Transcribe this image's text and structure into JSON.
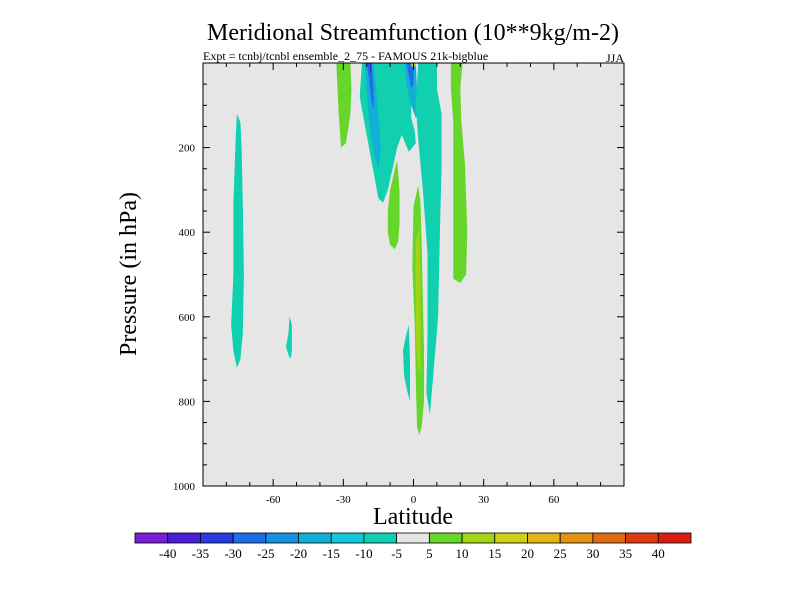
{
  "chart_data": {
    "type": "heatmap",
    "title": "Meridional Streamfunction (10**9kg/m-2)",
    "subtitle": "Expt = tcnbj/tcnbl ensemble_2_75 - FAMOUS 21k-bigblue",
    "season": "JJA",
    "xlabel": "Latitude",
    "ylabel": "Pressure (in hPa)",
    "xlim": [
      -90,
      90
    ],
    "ylim": [
      1000,
      0
    ],
    "x_ticks": [
      -60,
      -30,
      0,
      30,
      60
    ],
    "y_ticks": [
      200,
      400,
      600,
      800,
      1000
    ],
    "colorbar": {
      "levels": [
        -40,
        -35,
        -30,
        -25,
        -20,
        -15,
        -10,
        -5,
        5,
        10,
        15,
        20,
        25,
        30,
        35,
        40
      ],
      "colors": [
        "#7a1fd8",
        "#4a1ed6",
        "#2a3ae0",
        "#1f6ee8",
        "#1690e0",
        "#12b0d6",
        "#10c8d8",
        "#10d0b0",
        "#e6e6e6",
        "#66d62a",
        "#a4d416",
        "#cfd116",
        "#e2b414",
        "#e29210",
        "#e06a10",
        "#de3a10",
        "#d81e10"
      ]
    },
    "regions": [
      {
        "name": "nh-high-lat-negative",
        "level": "-10 to -5",
        "color": "#10d0b0",
        "points": [
          [
            -75.5,
            120
          ],
          [
            -74,
            140
          ],
          [
            -73.5,
            200
          ],
          [
            -73,
            330
          ],
          [
            -72.5,
            500
          ],
          [
            -73,
            640
          ],
          [
            -74,
            700
          ],
          [
            -75.5,
            720
          ],
          [
            -77,
            680
          ],
          [
            -78,
            620
          ],
          [
            -77,
            500
          ],
          [
            -77,
            330
          ],
          [
            -76,
            180
          ]
        ]
      },
      {
        "name": "nh-mid-lat-negative",
        "level": "-10 to -5",
        "color": "#10d0b0",
        "points": [
          [
            -53,
            600
          ],
          [
            -52,
            620
          ],
          [
            -52,
            680
          ],
          [
            -52.5,
            700
          ],
          [
            -53.5,
            690
          ],
          [
            -54.5,
            670
          ],
          [
            -53.5,
            640
          ]
        ]
      },
      {
        "name": "polar-cell-positive",
        "level": "5 to 10",
        "color": "#66d62a",
        "points": [
          [
            -33,
            0
          ],
          [
            -27,
            0
          ],
          [
            -26.5,
            60
          ],
          [
            -27,
            120
          ],
          [
            -28,
            160
          ],
          [
            -29,
            190
          ],
          [
            -31,
            200
          ],
          [
            -32,
            120
          ]
        ]
      },
      {
        "name": "hadley-cell-negative",
        "level": "-10 to -5",
        "color": "#10d0b0",
        "points": [
          [
            -22,
            0
          ],
          [
            -1,
            0
          ],
          [
            -1,
            130
          ],
          [
            0.5,
            160
          ],
          [
            1,
            190
          ],
          [
            -2,
            210
          ],
          [
            -5,
            170
          ],
          [
            -7,
            200
          ],
          [
            -9,
            250
          ],
          [
            -11,
            300
          ],
          [
            -13,
            330
          ],
          [
            -15,
            320
          ],
          [
            -17,
            260
          ],
          [
            -20,
            170
          ],
          [
            -23,
            80
          ]
        ]
      },
      {
        "name": "hadley-cell-core-1",
        "level": "-20 to -15",
        "color": "#12b0d6",
        "points": [
          [
            -21,
            0
          ],
          [
            -17,
            0
          ],
          [
            -15,
            120
          ],
          [
            -14,
            200
          ],
          [
            -15,
            250
          ],
          [
            -17,
            210
          ],
          [
            -19,
            140
          ],
          [
            -20,
            60
          ]
        ]
      },
      {
        "name": "hadley-cell-core-2",
        "level": "-30 to -25",
        "color": "#1f6ee8",
        "points": [
          [
            -20,
            0
          ],
          [
            -18,
            0
          ],
          [
            -17,
            60
          ],
          [
            -17,
            110
          ],
          [
            -18,
            90
          ],
          [
            -19,
            40
          ]
        ]
      },
      {
        "name": "hadley-cell-core-3",
        "level": "-40 to -35",
        "color": "#4a1ed6",
        "points": [
          [
            -19,
            0
          ],
          [
            -18,
            0
          ],
          [
            -18,
            30
          ],
          [
            -18.5,
            20
          ]
        ]
      },
      {
        "name": "hadley-cell-core-4",
        "level": "-20 to -15",
        "color": "#12b0d6",
        "points": [
          [
            -4,
            0
          ],
          [
            1,
            0
          ],
          [
            2,
            120
          ],
          [
            1,
            130
          ],
          [
            -1,
            100
          ],
          [
            -3,
            50
          ]
        ]
      },
      {
        "name": "hadley-cell-core-5",
        "level": "-30 to -25",
        "color": "#1f6ee8",
        "points": [
          [
            -3,
            0
          ],
          [
            0,
            0
          ],
          [
            0,
            50
          ],
          [
            -1,
            60
          ],
          [
            -2,
            30
          ]
        ]
      },
      {
        "name": "tropical-positive-1",
        "level": "5 to 10",
        "color": "#66d62a",
        "points": [
          [
            -10,
            300
          ],
          [
            -7,
            230
          ],
          [
            -6,
            300
          ],
          [
            -6,
            380
          ],
          [
            -6.5,
            420
          ],
          [
            -8,
            440
          ],
          [
            -10,
            430
          ],
          [
            -11,
            400
          ],
          [
            -11,
            350
          ]
        ]
      },
      {
        "name": "tropical-positive-2",
        "level": "5 to 10",
        "color": "#66d62a",
        "points": [
          [
            0,
            340
          ],
          [
            2,
            290
          ],
          [
            3,
            330
          ],
          [
            3.5,
            430
          ],
          [
            4,
            560
          ],
          [
            4.5,
            680
          ],
          [
            4.5,
            800
          ],
          [
            3.5,
            860
          ],
          [
            2.5,
            880
          ],
          [
            1.5,
            860
          ],
          [
            1,
            750
          ],
          [
            0.5,
            620
          ],
          [
            -0.5,
            480
          ]
        ]
      },
      {
        "name": "tropical-positive-core",
        "level": "10 to 15",
        "color": "#a4d416",
        "points": [
          [
            1,
            420
          ],
          [
            2.5,
            390
          ],
          [
            3,
            500
          ],
          [
            3,
            640
          ],
          [
            3,
            720
          ],
          [
            2,
            730
          ],
          [
            1,
            650
          ],
          [
            1,
            520
          ]
        ]
      },
      {
        "name": "tropical-negative-low",
        "level": "-10 to -5",
        "color": "#10d0b0",
        "points": [
          [
            -3,
            640
          ],
          [
            -2,
            620
          ],
          [
            -1.5,
            700
          ],
          [
            -1.5,
            800
          ],
          [
            -2.5,
            780
          ],
          [
            -4,
            740
          ],
          [
            -4.5,
            680
          ]
        ]
      },
      {
        "name": "sh-negative-1",
        "level": "-10 to -5",
        "color": "#10d0b0",
        "points": [
          [
            2,
            0
          ],
          [
            10,
            0
          ],
          [
            10,
            60
          ],
          [
            12,
            120
          ],
          [
            12,
            250
          ],
          [
            11.5,
            350
          ],
          [
            11,
            480
          ],
          [
            10.5,
            600
          ],
          [
            9,
            700
          ],
          [
            7.5,
            800
          ],
          [
            7,
            830
          ],
          [
            5.5,
            780
          ],
          [
            6,
            650
          ],
          [
            6,
            450
          ],
          [
            4,
            300
          ],
          [
            2,
            180
          ],
          [
            1,
            100
          ]
        ]
      },
      {
        "name": "sh-positive-high",
        "level": "5 to 10",
        "color": "#66d62a",
        "points": [
          [
            16,
            0
          ],
          [
            21,
            0
          ],
          [
            20,
            60
          ],
          [
            20.5,
            140
          ],
          [
            22,
            240
          ],
          [
            23,
            400
          ],
          [
            22.5,
            500
          ],
          [
            20,
            520
          ],
          [
            17,
            510
          ],
          [
            17,
            380
          ],
          [
            17,
            230
          ],
          [
            17,
            140
          ],
          [
            16,
            60
          ]
        ]
      },
      {
        "name": "gap-yellow-sliver",
        "level": "15 to 20",
        "color": "#cfd116",
        "points": [
          [
            -1,
            0
          ],
          [
            1,
            0
          ],
          [
            1,
            8
          ],
          [
            -1,
            8
          ]
        ]
      }
    ]
  }
}
